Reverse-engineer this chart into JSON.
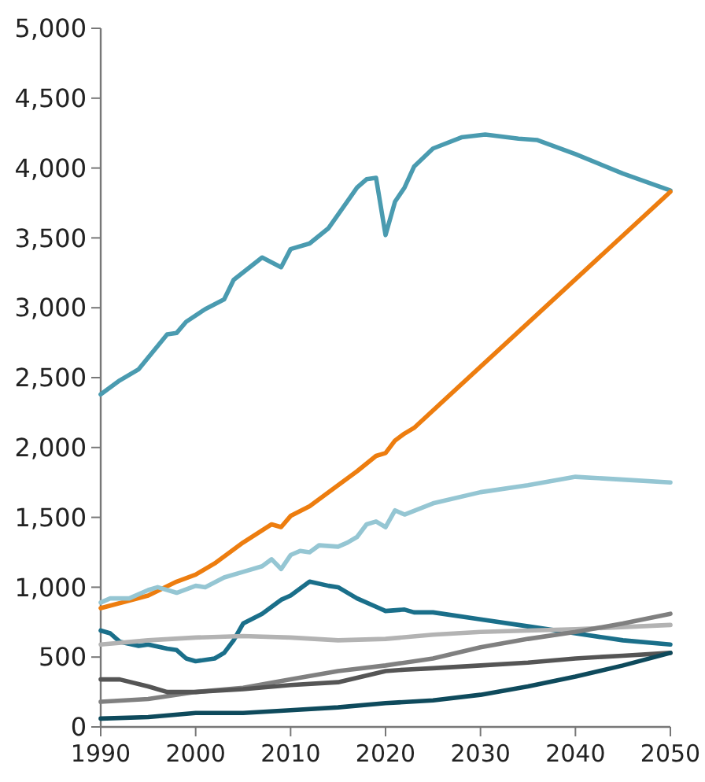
{
  "chart_data": {
    "type": "line",
    "xlim": [
      1990,
      2050
    ],
    "xticks": [
      1990,
      2000,
      2010,
      2020,
      2030,
      2040,
      2050
    ],
    "ylim": [
      0,
      5000
    ],
    "yticks": [
      {
        "value": 0,
        "label": "0"
      },
      {
        "value": 500,
        "label": "500"
      },
      {
        "value": 1000,
        "label": "1,000"
      },
      {
        "value": 1500,
        "label": "1,500"
      },
      {
        "value": 2000,
        "label": "2,000"
      },
      {
        "value": 2500,
        "label": "2,500"
      },
      {
        "value": 3000,
        "label": "3,000"
      },
      {
        "value": 3500,
        "label": "3,500"
      },
      {
        "value": 4000,
        "label": "4,000"
      },
      {
        "value": 4500,
        "label": "4,500"
      },
      {
        "value": 5000,
        "label": "5,000"
      }
    ],
    "grid": false,
    "marker": "none",
    "line_style": "solid",
    "series": [
      {
        "color": "#4a9bb0",
        "x": [
          1990,
          1992,
          1994,
          1997,
          1998,
          1999,
          2001,
          2003,
          2004,
          2007,
          2009,
          2010,
          2012,
          2014,
          2017,
          2018,
          2019,
          2020,
          2021,
          2022,
          2023,
          2025,
          2028,
          2030.5,
          2034,
          2036,
          2040,
          2045,
          2050
        ],
        "values": [
          2380,
          2480,
          2560,
          2810,
          2820,
          2900,
          2990,
          3060,
          3200,
          3360,
          3290,
          3420,
          3460,
          3570,
          3860,
          3920,
          3930,
          3520,
          3760,
          3860,
          4010,
          4140,
          4220,
          4240,
          4210,
          4200,
          4100,
          3960,
          3840
        ]
      },
      {
        "color": "#ed7d0f",
        "x": [
          1990,
          1995,
          1998,
          2000,
          2002,
          2005,
          2008,
          2009,
          2010,
          2012,
          2015,
          2017,
          2019,
          2020,
          2021,
          2022,
          2023,
          2050
        ],
        "values": [
          850,
          940,
          1040,
          1090,
          1170,
          1320,
          1450,
          1430,
          1510,
          1580,
          1730,
          1830,
          1940,
          1960,
          2050,
          2100,
          2140,
          3830
        ]
      },
      {
        "color": "#95c6d3",
        "x": [
          1990,
          1991,
          1993,
          1995,
          1996,
          1998,
          2000,
          2001,
          2003,
          2005,
          2007,
          2008,
          2009,
          2010,
          2011,
          2012,
          2013,
          2015,
          2016,
          2017,
          2018,
          2019,
          2020,
          2021,
          2022,
          2025,
          2030,
          2035,
          2040,
          2045,
          2050
        ],
        "values": [
          890,
          920,
          920,
          980,
          1000,
          960,
          1010,
          1000,
          1070,
          1110,
          1150,
          1200,
          1130,
          1230,
          1260,
          1250,
          1300,
          1290,
          1320,
          1360,
          1450,
          1470,
          1430,
          1550,
          1520,
          1600,
          1680,
          1730,
          1790,
          1770,
          1750
        ]
      },
      {
        "color": "#1a6f8a",
        "x": [
          1990,
          1991,
          1992,
          1994,
          1995,
          1997,
          1998,
          1999,
          2000,
          2002,
          2003,
          2004,
          2005,
          2007,
          2009,
          2010,
          2012,
          2014,
          2015,
          2017,
          2019,
          2020,
          2022,
          2023,
          2025,
          2030,
          2035,
          2040,
          2045,
          2050
        ],
        "values": [
          690,
          670,
          610,
          580,
          590,
          560,
          550,
          490,
          470,
          490,
          530,
          620,
          740,
          810,
          910,
          940,
          1040,
          1010,
          1000,
          920,
          860,
          830,
          840,
          820,
          820,
          770,
          720,
          670,
          620,
          590
        ]
      },
      {
        "color": "#b3b3b3",
        "x": [
          1990,
          1995,
          2000,
          2005,
          2010,
          2015,
          2020,
          2025,
          2030,
          2040,
          2050
        ],
        "values": [
          590,
          620,
          640,
          650,
          640,
          620,
          630,
          660,
          680,
          700,
          730
        ]
      },
      {
        "color": "#808080",
        "x": [
          1990,
          1995,
          2000,
          2005,
          2010,
          2015,
          2020,
          2025,
          2030,
          2035,
          2040,
          2045,
          2050
        ],
        "values": [
          180,
          200,
          250,
          280,
          340,
          400,
          440,
          490,
          570,
          630,
          680,
          740,
          810
        ]
      },
      {
        "color": "#555555",
        "x": [
          1990,
          1992,
          1995,
          1997,
          2000,
          2005,
          2010,
          2015,
          2020,
          2022,
          2025,
          2030,
          2035,
          2040,
          2045,
          2050
        ],
        "values": [
          340,
          340,
          290,
          250,
          250,
          270,
          300,
          320,
          400,
          410,
          420,
          440,
          460,
          490,
          510,
          530
        ]
      },
      {
        "color": "#0e4a5c",
        "x": [
          1990,
          1995,
          2000,
          2005,
          2010,
          2015,
          2020,
          2025,
          2030,
          2035,
          2040,
          2045,
          2050
        ],
        "values": [
          60,
          70,
          100,
          100,
          120,
          140,
          170,
          190,
          230,
          290,
          360,
          440,
          530
        ]
      }
    ]
  }
}
